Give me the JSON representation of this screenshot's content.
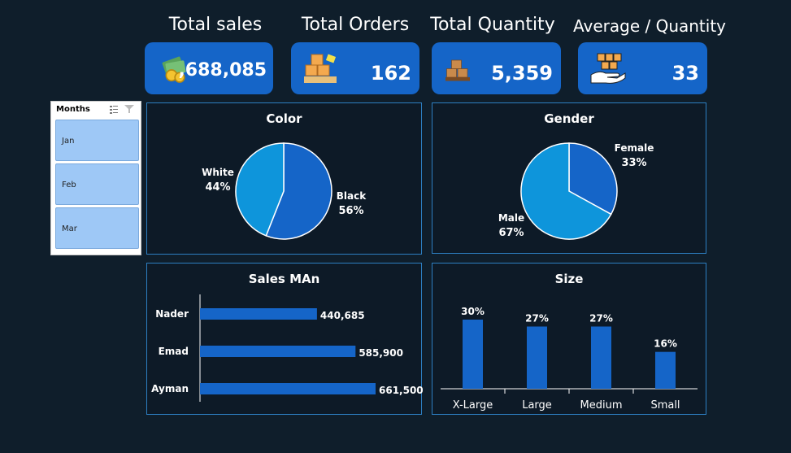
{
  "kpis": {
    "total_sales": {
      "label": "Total sales",
      "value": ",688,085",
      "icon": "money-icon"
    },
    "total_orders": {
      "label": "Total Orders",
      "value": "162",
      "icon": "boxes-icon"
    },
    "total_quantity": {
      "label": "Total Quantity",
      "value": "5,359",
      "icon": "pallet-icon"
    },
    "average_quantity": {
      "label": "Average / Quantity",
      "value": "33",
      "icon": "hand-boxes-icon"
    }
  },
  "slicer": {
    "title": "Months",
    "items": [
      "Jan",
      "Feb",
      "Mar"
    ]
  },
  "colors": {
    "background": "#0f1e2b",
    "card": "#1565c8",
    "series_dark": "#1565c8",
    "series_light": "#0e95db",
    "panel_border": "#2d7fc2"
  },
  "chart_data": [
    {
      "id": "color",
      "type": "pie",
      "title": "Color",
      "slices": [
        {
          "label": "Black",
          "pct_label": "56%",
          "value": 56
        },
        {
          "label": "White",
          "pct_label": "44%",
          "value": 44
        }
      ]
    },
    {
      "id": "gender",
      "type": "pie",
      "title": "Gender",
      "slices": [
        {
          "label": "Female",
          "pct_label": "33%",
          "value": 33
        },
        {
          "label": "Male",
          "pct_label": "67%",
          "value": 67
        }
      ]
    },
    {
      "id": "sales_man",
      "type": "bar",
      "orientation": "horizontal",
      "title": "Sales MAn",
      "categories": [
        "Nader",
        "Emad",
        "Ayman"
      ],
      "values": [
        440685,
        585900,
        661500
      ],
      "value_labels": [
        "440,685",
        "585,900",
        "661,500"
      ],
      "xlim": [
        0,
        661500
      ]
    },
    {
      "id": "size",
      "type": "bar",
      "orientation": "vertical",
      "title": "Size",
      "categories": [
        "X-Large",
        "Large",
        "Medium",
        "Small"
      ],
      "values": [
        30,
        27,
        27,
        16
      ],
      "value_labels": [
        "30%",
        "27%",
        "27%",
        "16%"
      ],
      "ylim": [
        0,
        30
      ]
    }
  ]
}
